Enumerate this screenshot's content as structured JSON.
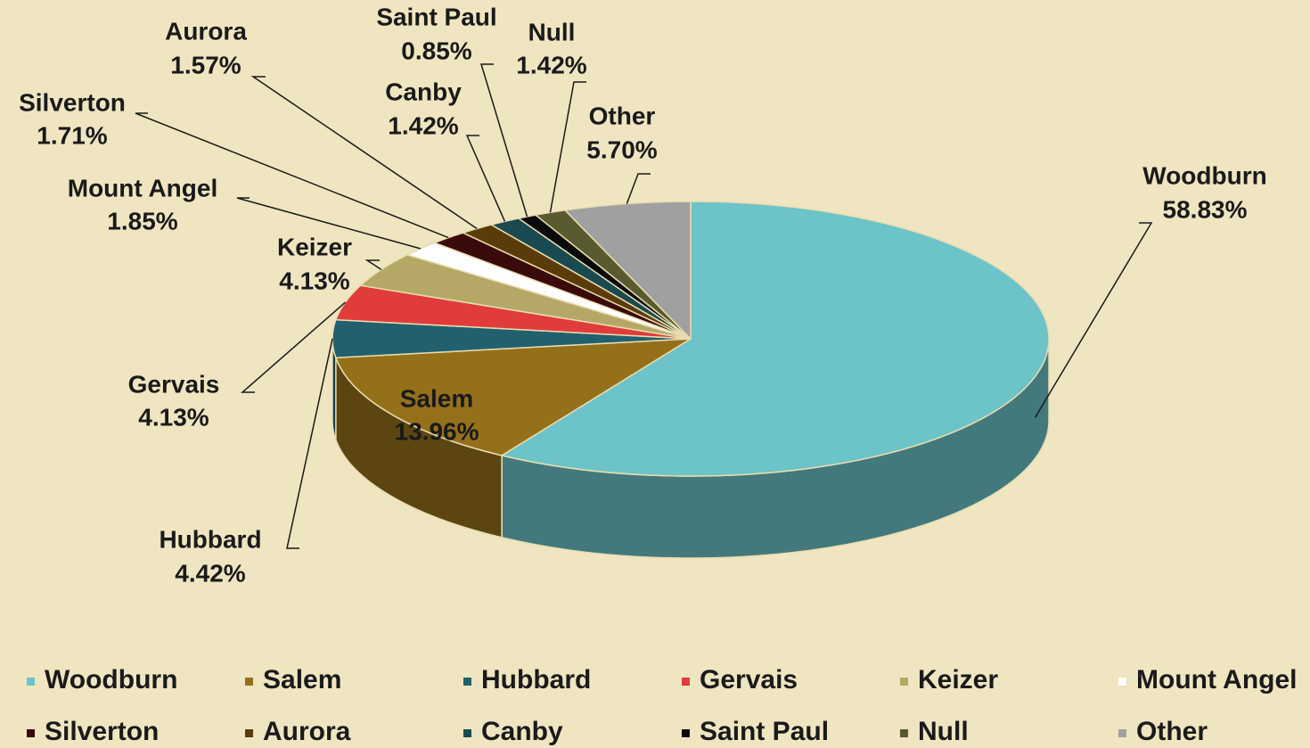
{
  "chart_data": {
    "type": "pie",
    "categories": [
      "Woodburn",
      "Salem",
      "Hubbard",
      "Gervais",
      "Keizer",
      "Mount Angel",
      "Silverton",
      "Aurora",
      "Canby",
      "Saint Paul",
      "Null",
      "Other"
    ],
    "values": [
      58.83,
      13.96,
      4.42,
      4.13,
      4.13,
      1.85,
      1.71,
      1.57,
      1.42,
      0.85,
      1.42,
      5.7
    ],
    "value_labels": [
      "58.83%",
      "13.96%",
      "4.42%",
      "4.13%",
      "4.13%",
      "1.85%",
      "1.71%",
      "1.57%",
      "1.42%",
      "0.85%",
      "1.42%",
      "5.70%"
    ],
    "colors": [
      "#6cc3c8",
      "#94701a",
      "#22606e",
      "#e03c3c",
      "#b5a866",
      "#ffffff",
      "#3a0a0a",
      "#5a3c0a",
      "#1a4a50",
      "#0a0a0a",
      "#5a5a30",
      "#a0a0a0"
    ],
    "legend": "bottom"
  }
}
